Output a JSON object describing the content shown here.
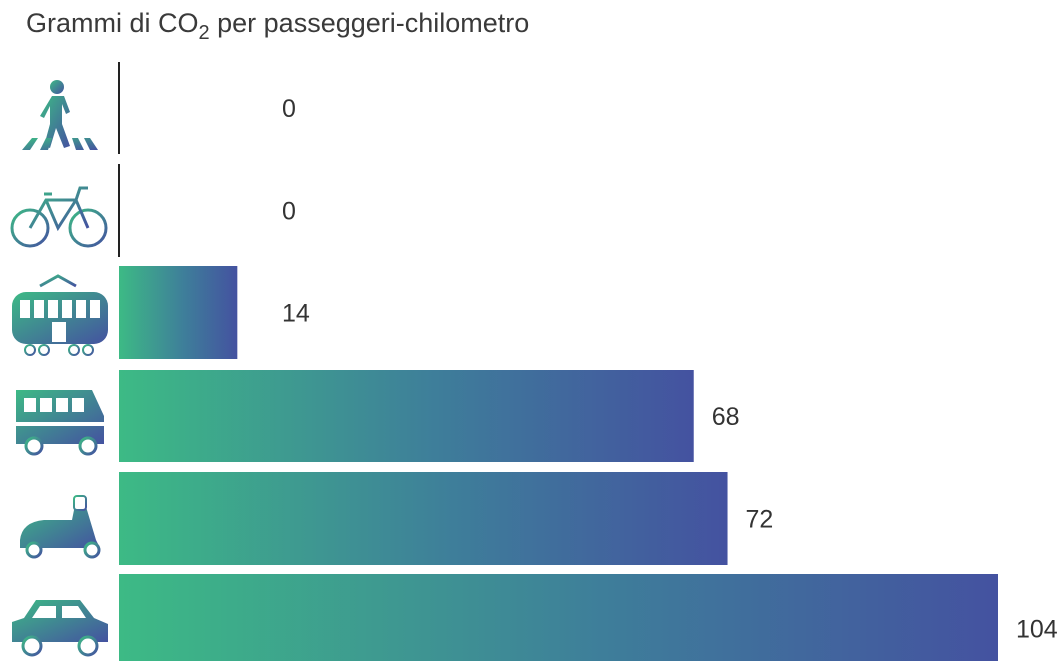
{
  "chart_data": {
    "type": "bar",
    "orientation": "horizontal",
    "title_prefix": "Grammi di CO",
    "title_subscript": "2",
    "title_suffix": " per passeggeri-chilometro",
    "categories": [
      "walking-icon",
      "bicycle-icon",
      "tram-icon",
      "bus-icon",
      "scooter-icon",
      "car-icon"
    ],
    "values": [
      0,
      0,
      14,
      68,
      72,
      104
    ],
    "value_labels": [
      "0",
      "0",
      "14",
      "68",
      "72",
      "104"
    ],
    "xlim": [
      0,
      104
    ],
    "grid": false,
    "legend": "none"
  },
  "colors": {
    "gradient_start": "#3dba85",
    "gradient_mid": "#3e7e9a",
    "gradient_end": "#4452a0",
    "text": "#333333",
    "axis": "#222222"
  }
}
